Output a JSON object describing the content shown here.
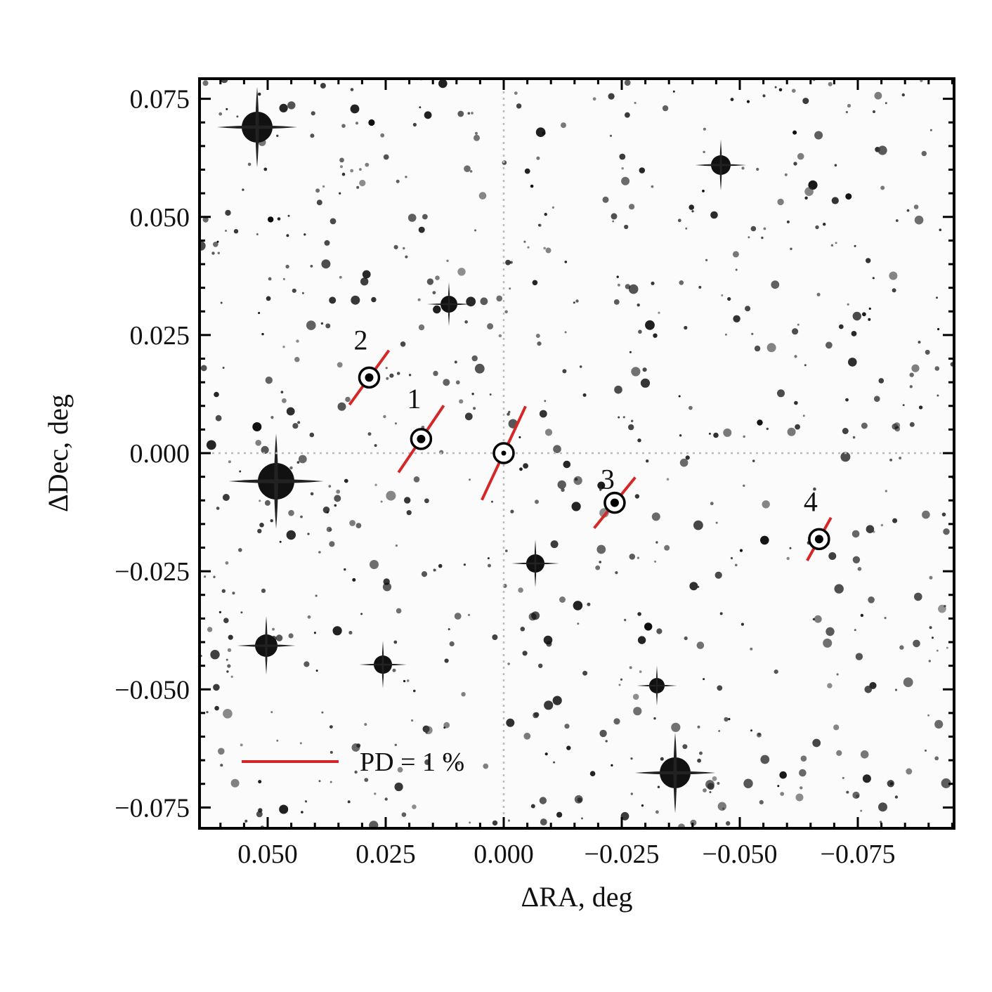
{
  "chart_data": {
    "type": "scatter",
    "title": "",
    "xlabel": "ΔRA, deg",
    "ylabel": "ΔDec, deg",
    "xlim": [
      0.065,
      -0.095
    ],
    "ylim": [
      -0.08,
      0.08
    ],
    "x_inverted": true,
    "xticks": [
      0.05,
      0.025,
      0.0,
      -0.025,
      -0.05,
      -0.075
    ],
    "xtick_labels": [
      "0.050",
      "0.025",
      "0.000",
      "−0.025",
      "−0.050",
      "−0.075"
    ],
    "yticks": [
      0.075,
      0.05,
      0.025,
      0.0,
      -0.025,
      -0.05,
      -0.075
    ],
    "ytick_labels": [
      "0.075",
      "0.050",
      "0.025",
      "0.000",
      "−0.025",
      "−0.050",
      "−0.075"
    ],
    "crosshair": {
      "x": 0.0,
      "y": 0.0,
      "style": "dotted",
      "color": "#bbbbbb"
    },
    "background": "inverted greyscale star field",
    "vector_color": "#d62728",
    "stars": [
      {
        "label": "",
        "ra": 0.0,
        "dec": 0.0,
        "pd_percent": 1.6,
        "pa_deg": 25
      },
      {
        "label": "1",
        "ra": 0.0175,
        "dec": 0.003,
        "pd_percent": 1.25,
        "pa_deg": 34
      },
      {
        "label": "2",
        "ra": 0.0285,
        "dec": 0.016,
        "pd_percent": 1.04,
        "pa_deg": 36
      },
      {
        "label": "3",
        "ra": -0.0235,
        "dec": -0.0105,
        "pd_percent": 1.01,
        "pa_deg": 39
      },
      {
        "label": "4",
        "ra": -0.0668,
        "dec": -0.0182,
        "pd_percent": 0.76,
        "pa_deg": 29
      }
    ],
    "legend": {
      "label": "PD = 1 %",
      "location": "lower-left",
      "pd_percent": 1
    }
  }
}
